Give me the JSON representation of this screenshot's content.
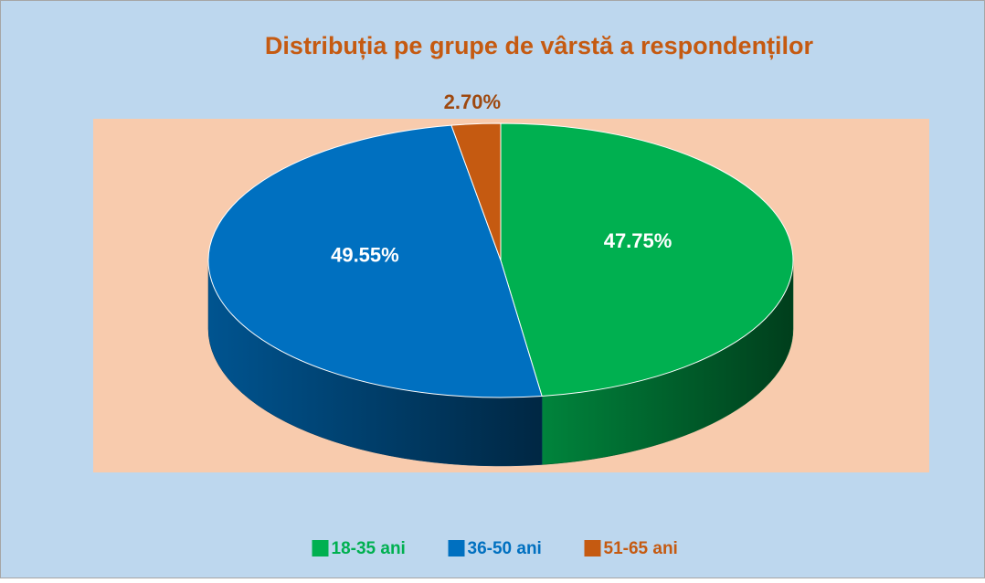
{
  "chart_data": {
    "type": "pie",
    "title": "Distribuția pe grupe de vârstă a respondenților",
    "categories": [
      "18-35 ani",
      "36-50 ani",
      "51-65 ani"
    ],
    "values": [
      47.75,
      49.55,
      2.7
    ],
    "value_labels": [
      "47.75%",
      "49.55%",
      "2.70%"
    ],
    "colors": [
      "#00b050",
      "#0070c0",
      "#c55a11"
    ],
    "legend": "bottom"
  }
}
